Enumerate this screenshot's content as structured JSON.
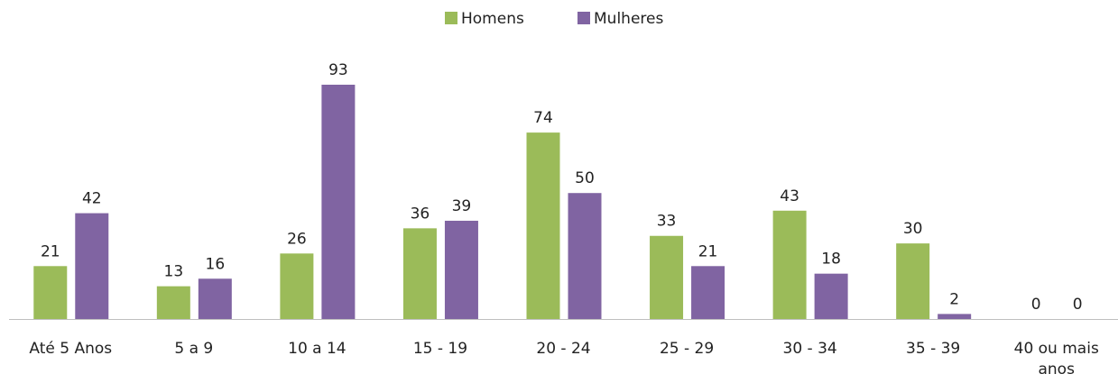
{
  "chart_data": {
    "type": "bar",
    "categories": [
      "Até 5 Anos",
      "5 a 9",
      "10 a 14",
      "15 - 19",
      "20 - 24",
      "25 - 29",
      "30 - 34",
      "35 - 39",
      "40 ou mais anos"
    ],
    "series": [
      {
        "name": "Homens",
        "color": "#9bbb59",
        "values": [
          21,
          13,
          26,
          36,
          74,
          33,
          43,
          30,
          0
        ]
      },
      {
        "name": "Mulheres",
        "color": "#8064a2",
        "values": [
          42,
          16,
          93,
          39,
          50,
          21,
          18,
          2,
          0
        ]
      }
    ],
    "legend": "top"
  }
}
